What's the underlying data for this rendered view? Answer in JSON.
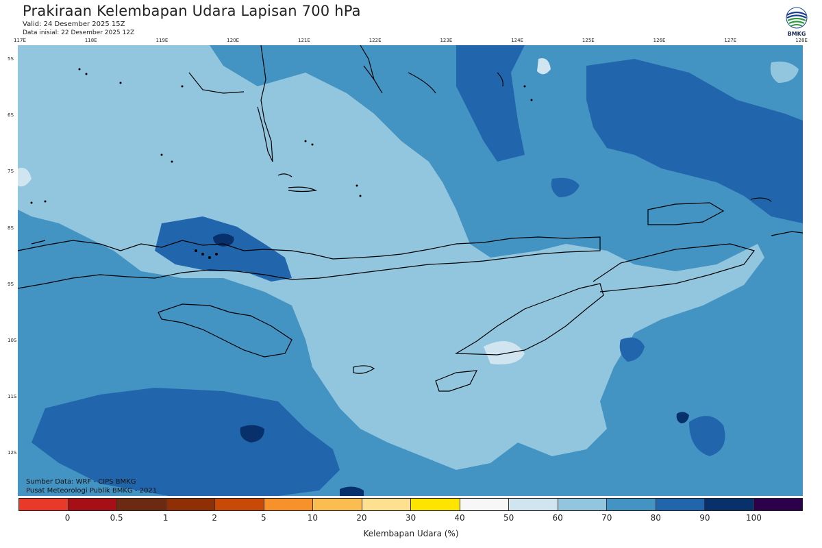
{
  "title": "Prakiraan Kelembapan Udara Lapisan 700 hPa",
  "valid": "Valid: 24 Desember 2025 15Z",
  "initial": "Data inisial: 22 Desember 2025 12Z",
  "logo_text": "BMKG",
  "lon_labels": [
    "117E",
    "118E",
    "119E",
    "120E",
    "121E",
    "122E",
    "123E",
    "124E",
    "125E",
    "126E",
    "127E",
    "128E"
  ],
  "lat_labels": [
    "5S",
    "6S",
    "7S",
    "8S",
    "9S",
    "10S",
    "11S",
    "12S"
  ],
  "source_line1": "Sumber Data: WRF - CIPS BMKG",
  "source_line2": "Pusat Meteorologi Publik BMKG - 2021",
  "legend": {
    "title": "Kelembapan Udara (%)",
    "ticks": [
      "0",
      "0.5",
      "1",
      "2",
      "5",
      "10",
      "20",
      "30",
      "40",
      "50",
      "60",
      "70",
      "80",
      "90",
      "100"
    ],
    "colors": [
      "#e8392b",
      "#a50f15",
      "#6b2a11",
      "#8e2f05",
      "#c94a06",
      "#f7922a",
      "#fbbd4f",
      "#fde191",
      "#fde500",
      "#f7f7f7",
      "#d1e5f0",
      "#92c5de",
      "#4393c3",
      "#2166ac",
      "#08306b",
      "#2d004b"
    ]
  },
  "colors": {
    "band_60_70": "#92c5de",
    "band_70_80": "#4393c3",
    "band_80_90": "#2166ac",
    "band_90_100": "#08306b",
    "band_50_60": "#d1e5f0"
  }
}
